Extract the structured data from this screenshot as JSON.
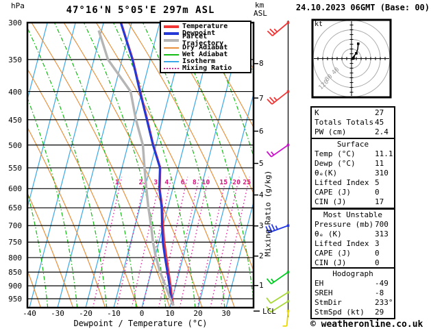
{
  "header": {
    "pressure_unit": "hPa",
    "title": "47°16'N 5°05'E 297m ASL",
    "km": "km",
    "asl": "ASL",
    "date": "24.10.2023 06GMT (Base: 00)"
  },
  "axes": {
    "pressure_ticks": [
      300,
      350,
      400,
      450,
      500,
      550,
      600,
      650,
      700,
      750,
      800,
      850,
      900,
      950
    ],
    "temp_ticks": [
      -40,
      -30,
      -20,
      -10,
      0,
      10,
      20,
      30
    ],
    "xlabel": "Dewpoint / Temperature (°C)",
    "km_ticks": [
      1,
      2,
      3,
      4,
      5,
      6,
      7,
      8
    ],
    "right_axis_label": "Mixing Ratio (g/kg)",
    "lcl_label": "LCL"
  },
  "legend": {
    "items": [
      {
        "label": "Temperature",
        "color": "#f23535",
        "thick": true,
        "dotted": false
      },
      {
        "label": "Dewpoint",
        "color": "#2338d6",
        "thick": true,
        "dotted": false
      },
      {
        "label": "Parcel Trajectory",
        "color": "#b5b5b5",
        "thick": true,
        "dotted": false
      },
      {
        "label": "Dry Adiabat",
        "color": "#e8913d",
        "thick": false,
        "dotted": false
      },
      {
        "label": "Wet Adiabat",
        "color": "#11bb11",
        "thick": false,
        "dotted": false
      },
      {
        "label": "Isotherm",
        "color": "#3aa8e8",
        "thick": false,
        "dotted": false
      },
      {
        "label": "Mixing Ratio",
        "color": "#e8199e",
        "thick": false,
        "dotted": true
      }
    ]
  },
  "chart_data": {
    "type": "skewt-log-p",
    "pressure_range_hpa": [
      300,
      986
    ],
    "temp_range_c": [
      -40,
      38
    ],
    "isotherm_step_c": 10,
    "background_colors": {
      "isotherm": "#3aa8e8",
      "dry_adiabat": "#e8913d",
      "wet_adiabat": "#11bb11",
      "mixing_ratio": "#e8199e",
      "gridline": "#000000"
    },
    "mixing_ratio_lines": [
      {
        "g_per_kg": 1,
        "td_at_bottom_c": -17.4
      },
      {
        "g_per_kg": 2,
        "td_at_bottom_c": -8.9
      },
      {
        "g_per_kg": 3,
        "td_at_bottom_c": -3.6
      },
      {
        "g_per_kg": 4,
        "td_at_bottom_c": 0.3
      },
      {
        "g_per_kg": 6,
        "td_at_bottom_c": 6.0
      },
      {
        "g_per_kg": 8,
        "td_at_bottom_c": 10.2
      },
      {
        "g_per_kg": 10,
        "td_at_bottom_c": 13.5
      },
      {
        "g_per_kg": 15,
        "td_at_bottom_c": 19.8
      },
      {
        "g_per_kg": 20,
        "td_at_bottom_c": 24.4
      },
      {
        "g_per_kg": 25,
        "td_at_bottom_c": 28.1
      }
    ],
    "series": [
      {
        "name": "temperature",
        "color": "#f23535",
        "width": 2.5,
        "points_p_t": [
          [
            977,
            11.1
          ],
          [
            950,
            10.0
          ],
          [
            900,
            8.3
          ],
          [
            850,
            6.3
          ],
          [
            800,
            4.2
          ],
          [
            750,
            2.0
          ],
          [
            700,
            0.0
          ],
          [
            650,
            -1.9
          ],
          [
            600,
            -4.6
          ],
          [
            550,
            -6.3
          ],
          [
            500,
            -10.9
          ],
          [
            450,
            -15.4
          ],
          [
            400,
            -20.5
          ],
          [
            350,
            -26.1
          ],
          [
            300,
            -33.7
          ]
        ]
      },
      {
        "name": "dewpoint",
        "color": "#2338d6",
        "width": 3,
        "points_p_t": [
          [
            977,
            11.0
          ],
          [
            950,
            9.6
          ],
          [
            900,
            7.8
          ],
          [
            850,
            5.8
          ],
          [
            800,
            3.6
          ],
          [
            750,
            1.4
          ],
          [
            700,
            -0.4
          ],
          [
            650,
            -2.2
          ],
          [
            600,
            -4.8
          ],
          [
            550,
            -6.5
          ],
          [
            500,
            -11.1
          ],
          [
            450,
            -15.6
          ],
          [
            400,
            -20.7
          ],
          [
            350,
            -26.3
          ],
          [
            300,
            -33.9
          ]
        ]
      },
      {
        "name": "parcel_trajectory",
        "color": "#b5b5b5",
        "width": 3.5,
        "points_p_t": [
          [
            977,
            11.1
          ],
          [
            950,
            9.3
          ],
          [
            900,
            6.4
          ],
          [
            850,
            3.2
          ],
          [
            800,
            0.4
          ],
          [
            750,
            -2.1
          ],
          [
            700,
            -4.3
          ],
          [
            650,
            -6.9
          ],
          [
            600,
            -9.4
          ],
          [
            550,
            -12.0
          ],
          [
            500,
            -14.7
          ],
          [
            450,
            -19.5
          ],
          [
            400,
            -24.0
          ],
          [
            350,
            -35.0
          ],
          [
            310,
            -41.0
          ]
        ]
      }
    ],
    "wind_barbs": [
      {
        "pressure_hpa": 300,
        "speed_kt": 25,
        "dir_deg": 230,
        "color": "#f23535"
      },
      {
        "pressure_hpa": 400,
        "speed_kt": 25,
        "dir_deg": 232,
        "color": "#f23535"
      },
      {
        "pressure_hpa": 500,
        "speed_kt": 15,
        "dir_deg": 235,
        "color": "#cc11cc"
      },
      {
        "pressure_hpa": 700,
        "speed_kt": 35,
        "dir_deg": 250,
        "color": "#2338e8"
      },
      {
        "pressure_hpa": 850,
        "speed_kt": 15,
        "dir_deg": 235,
        "color": "#00cc22"
      },
      {
        "pressure_hpa": 925,
        "speed_kt": 10,
        "dir_deg": 238,
        "color": "#a8d838"
      },
      {
        "pressure_hpa": 960,
        "speed_kt": 10,
        "dir_deg": 238,
        "color": "#a8d838"
      },
      {
        "pressure_hpa": 1000,
        "speed_kt": 5,
        "dir_deg": 185,
        "color": "#e8d800"
      }
    ],
    "hodograph": {
      "unit": "kt",
      "ring_radii_kt": [
        40,
        80,
        120,
        160
      ],
      "ring_labels": [
        40,
        80,
        120
      ],
      "trace_uv_kt": [
        [
          0,
          0
        ],
        [
          10,
          10
        ],
        [
          20,
          22
        ],
        [
          26,
          40
        ],
        [
          28,
          62
        ]
      ]
    }
  },
  "tables": [
    {
      "header": null,
      "rows": [
        [
          "K",
          "27"
        ],
        [
          "Totals Totals",
          "45"
        ],
        [
          "PW (cm)",
          "2.4"
        ]
      ]
    },
    {
      "header": "Surface",
      "rows": [
        [
          "Temp (°C)",
          "11.1"
        ],
        [
          "Dewp (°C)",
          "11"
        ],
        [
          "θₑ(K)",
          "310"
        ],
        [
          "Lifted Index",
          "5"
        ],
        [
          "CAPE (J)",
          "0"
        ],
        [
          "CIN (J)",
          "17"
        ]
      ]
    },
    {
      "header": "Most Unstable",
      "rows": [
        [
          "Pressure (mb)",
          "700"
        ],
        [
          "θₑ (K)",
          "313"
        ],
        [
          "Lifted Index",
          "3"
        ],
        [
          "CAPE (J)",
          "0"
        ],
        [
          "CIN (J)",
          "0"
        ]
      ]
    },
    {
      "header": "Hodograph",
      "rows": [
        [
          "EH",
          "-49"
        ],
        [
          "SREH",
          "-8"
        ],
        [
          "StmDir",
          "233°"
        ],
        [
          "StmSpd (kt)",
          "29"
        ]
      ]
    }
  ],
  "footer": {
    "copyright": "© weatheronline.co.uk"
  }
}
